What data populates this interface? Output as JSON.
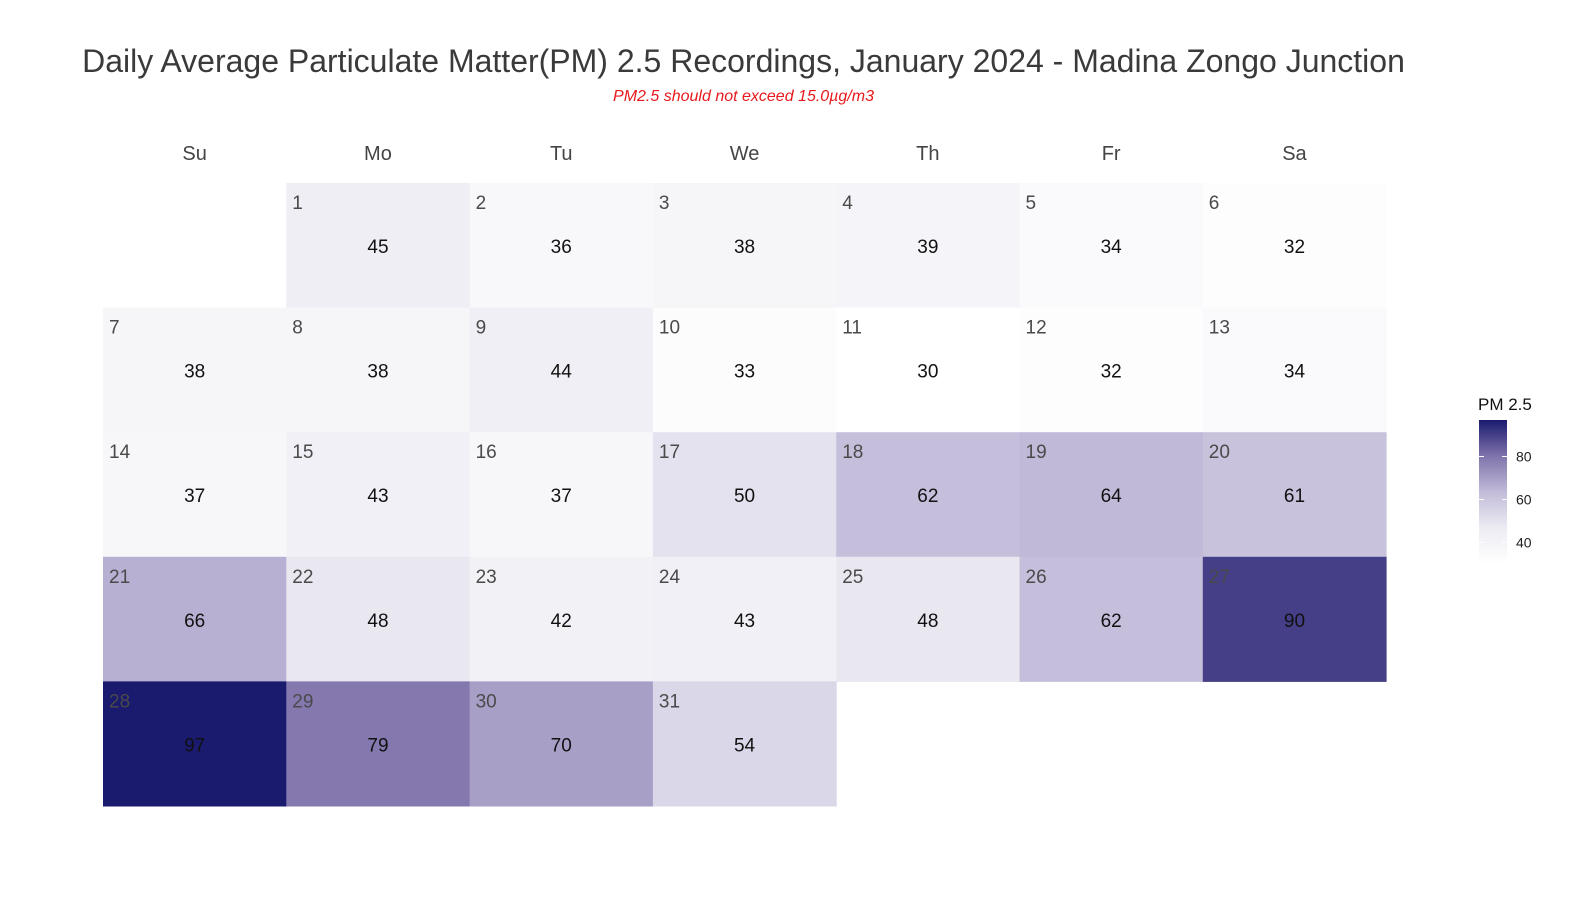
{
  "chart_data": {
    "type": "heatmap",
    "title": "Daily Average Particulate Matter(PM) 2.5 Recordings, January 2024 - Madina Zongo Junction",
    "subtitle": "PM2.5 should not exceed 15.0µg/m3",
    "weekdays": [
      "Su",
      "Mo",
      "Tu",
      "We",
      "Th",
      "Fr",
      "Sa"
    ],
    "first_weekday_index": 1,
    "days": [
      1,
      2,
      3,
      4,
      5,
      6,
      7,
      8,
      9,
      10,
      11,
      12,
      13,
      14,
      15,
      16,
      17,
      18,
      19,
      20,
      21,
      22,
      23,
      24,
      25,
      26,
      27,
      28,
      29,
      30,
      31
    ],
    "values": [
      45,
      36,
      38,
      39,
      34,
      32,
      38,
      38,
      44,
      33,
      30,
      32,
      34,
      37,
      43,
      37,
      50,
      62,
      64,
      61,
      66,
      48,
      42,
      43,
      48,
      62,
      90,
      97,
      79,
      70,
      54
    ],
    "legend": {
      "title": "PM 2.5",
      "ticks": [
        40,
        60,
        80
      ],
      "range": [
        30,
        97
      ],
      "color_low": "#ffffff",
      "color_high": "#1a1a6e",
      "placement": "right"
    }
  }
}
